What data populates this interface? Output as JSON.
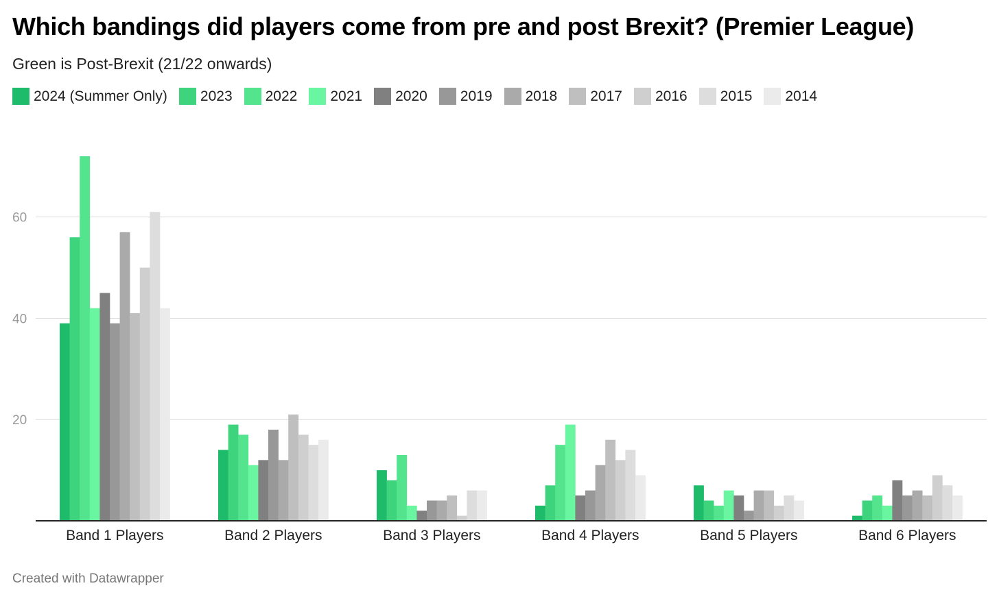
{
  "footer": "Created with Datawrapper",
  "colors": {
    "2024 (Summer Only)": "#1dbb6a",
    "2023": "#3dd47d",
    "2022": "#55e48e",
    "2021": "#6af5a0",
    "2020": "#808080",
    "2019": "#989898",
    "2018": "#aaaaaa",
    "2017": "#bfbfbf",
    "2016": "#cfcfcf",
    "2015": "#dddddd",
    "2014": "#ebebeb"
  },
  "chart_data": {
    "type": "bar",
    "title": "Which bandings did players come from pre and post Brexit? (Premier League)",
    "subtitle": "Green is Post-Brexit (21/22 onwards)",
    "categories": [
      "Band 1 Players",
      "Band 2 Players",
      "Band 3 Players",
      "Band 4 Players",
      "Band 5 Players",
      "Band 6 Players"
    ],
    "ylim": [
      0,
      72
    ],
    "yticks": [
      20,
      40,
      60
    ],
    "grid": true,
    "legend_position": "top",
    "series": [
      {
        "name": "2024 (Summer Only)",
        "values": [
          39,
          14,
          10,
          3,
          7,
          1
        ]
      },
      {
        "name": "2023",
        "values": [
          56,
          19,
          8,
          7,
          4,
          4
        ]
      },
      {
        "name": "2022",
        "values": [
          72,
          17,
          13,
          15,
          3,
          5
        ]
      },
      {
        "name": "2021",
        "values": [
          42,
          11,
          3,
          19,
          6,
          3
        ]
      },
      {
        "name": "2020",
        "values": [
          45,
          12,
          2,
          5,
          5,
          8
        ]
      },
      {
        "name": "2019",
        "values": [
          39,
          18,
          4,
          6,
          2,
          5
        ]
      },
      {
        "name": "2018",
        "values": [
          57,
          12,
          4,
          11,
          6,
          6
        ]
      },
      {
        "name": "2017",
        "values": [
          41,
          21,
          5,
          16,
          6,
          5
        ]
      },
      {
        "name": "2016",
        "values": [
          50,
          17,
          1,
          12,
          3,
          9
        ]
      },
      {
        "name": "2015",
        "values": [
          61,
          15,
          6,
          14,
          5,
          7
        ]
      },
      {
        "name": "2014",
        "values": [
          42,
          16,
          6,
          9,
          4,
          5
        ]
      }
    ]
  }
}
